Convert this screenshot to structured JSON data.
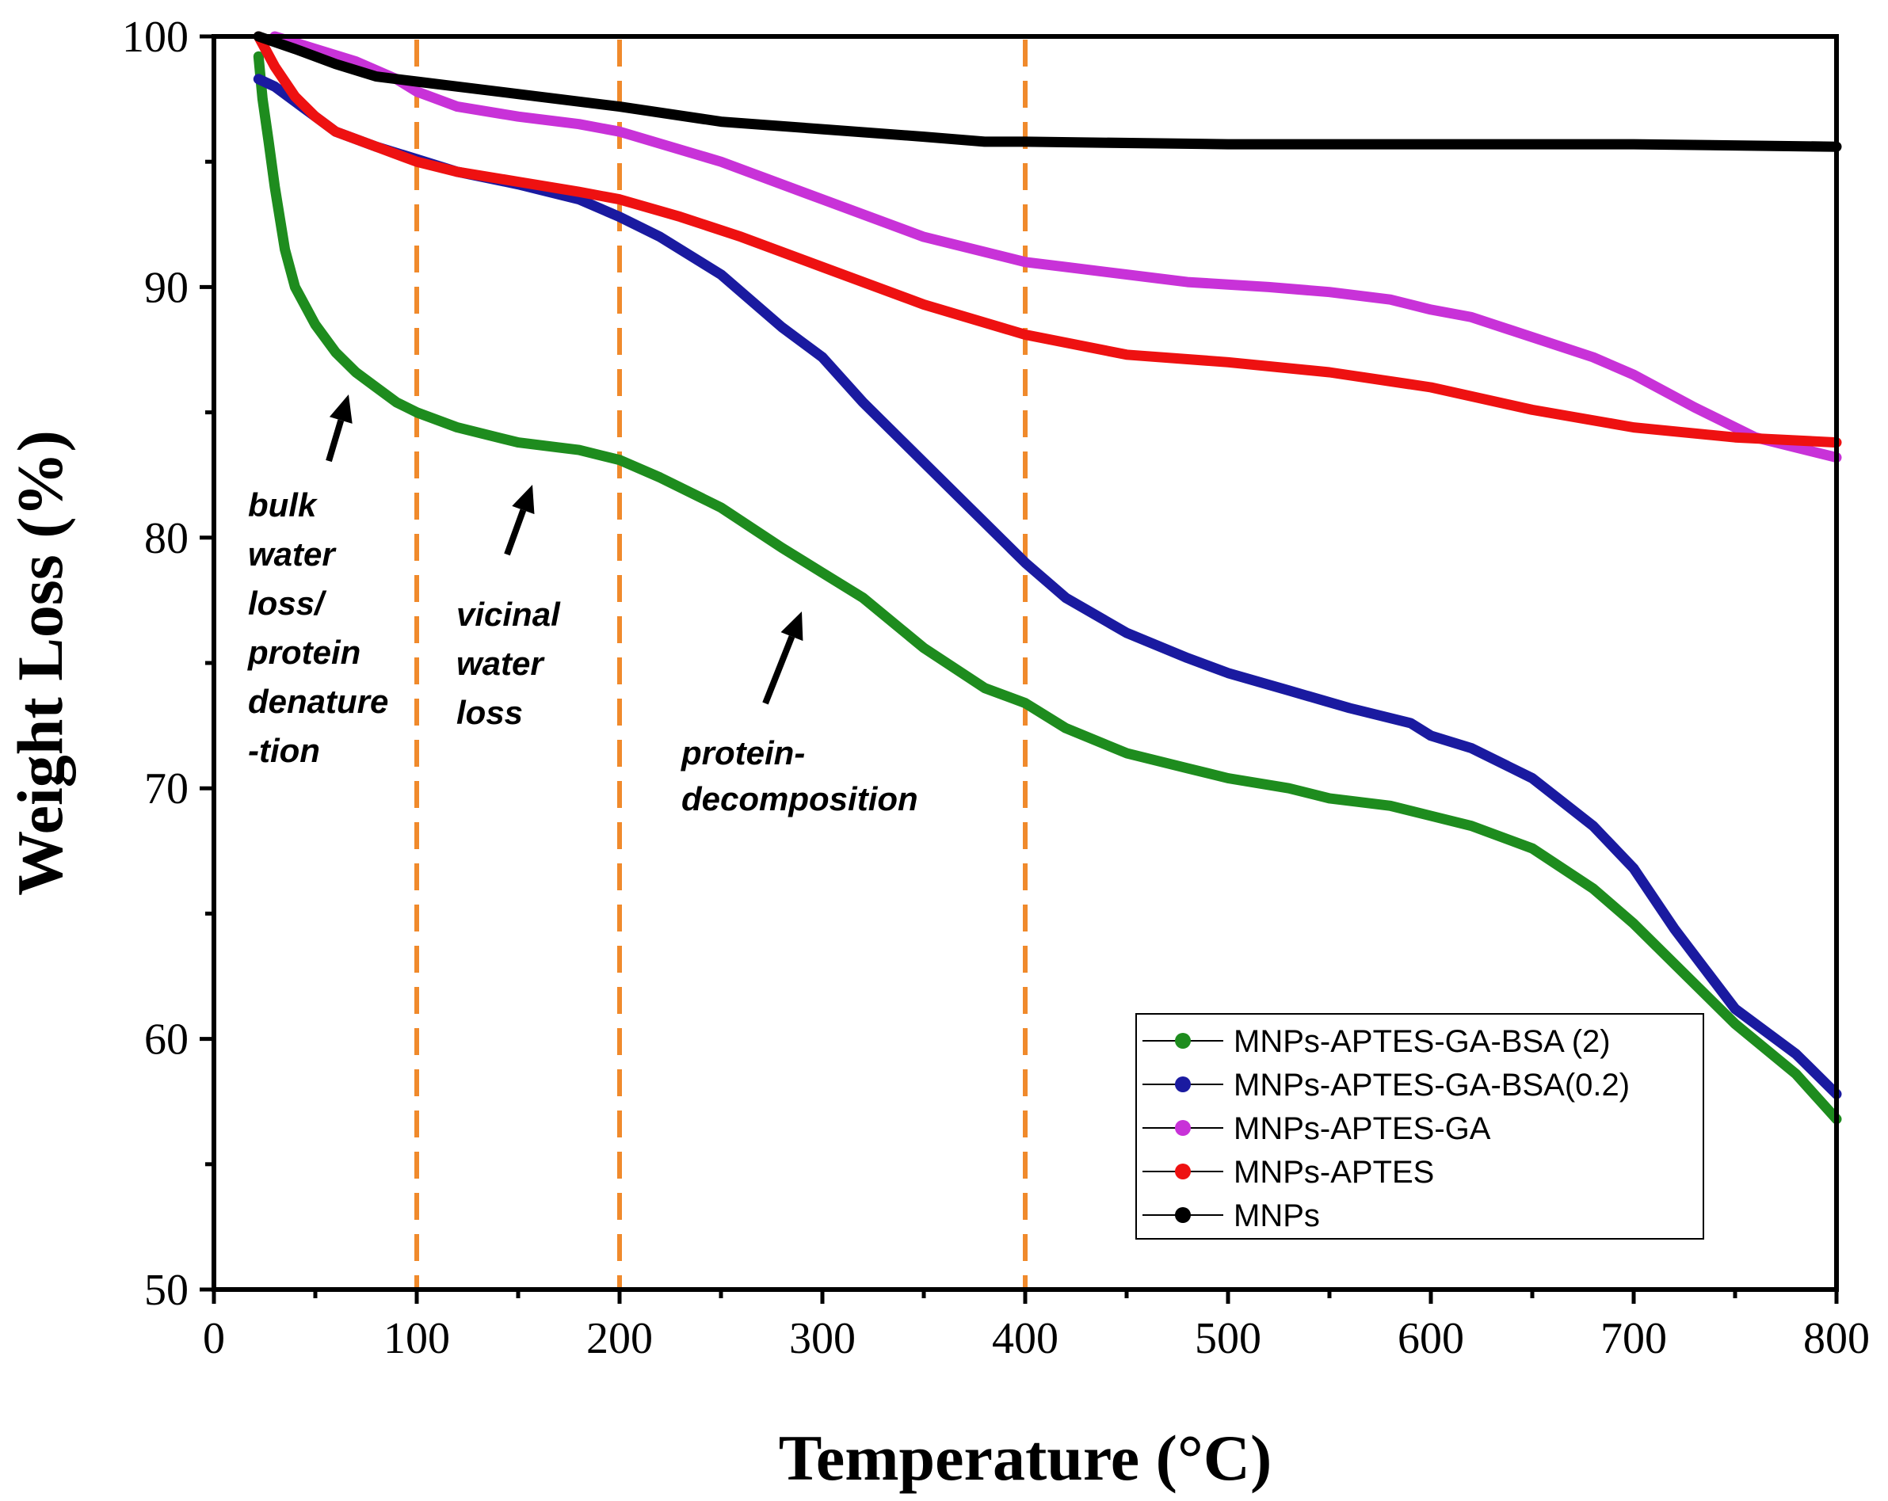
{
  "chart_data": {
    "type": "line",
    "title": "",
    "xlabel": "Temperature (°C)",
    "ylabel": "Weight Loss (%)",
    "xlim": [
      0,
      800
    ],
    "ylim": [
      50,
      100
    ],
    "x_ticks": [
      0,
      100,
      200,
      300,
      400,
      500,
      600,
      700,
      800
    ],
    "y_ticks": [
      50,
      60,
      70,
      80,
      90,
      100
    ],
    "x_tick_labels": [
      "0",
      "100",
      "200",
      "300",
      "400",
      "500",
      "600",
      "700",
      "800"
    ],
    "y_tick_labels": [
      "50",
      "60",
      "70",
      "80",
      "90",
      "100"
    ],
    "grid": false,
    "legend_position": "bottom-right",
    "reference_lines": {
      "x_values": [
        100,
        200,
        400
      ],
      "color": "#F08A2C",
      "style": "dashed"
    },
    "series": [
      {
        "name": "MNPs-APTES-GA-BSA (2)",
        "color": "#1E8C1E",
        "points": [
          [
            22,
            99.2
          ],
          [
            24,
            97.5
          ],
          [
            27,
            95.8
          ],
          [
            30,
            94
          ],
          [
            35,
            91.5
          ],
          [
            40,
            90
          ],
          [
            50,
            88.5
          ],
          [
            60,
            87.4
          ],
          [
            70,
            86.6
          ],
          [
            80,
            86
          ],
          [
            90,
            85.4
          ],
          [
            100,
            85
          ],
          [
            120,
            84.4
          ],
          [
            150,
            83.8
          ],
          [
            170,
            83.6
          ],
          [
            180,
            83.5
          ],
          [
            200,
            83.1
          ],
          [
            220,
            82.4
          ],
          [
            250,
            81.2
          ],
          [
            280,
            79.6
          ],
          [
            300,
            78.6
          ],
          [
            320,
            77.6
          ],
          [
            350,
            75.6
          ],
          [
            380,
            74
          ],
          [
            400,
            73.4
          ],
          [
            420,
            72.4
          ],
          [
            450,
            71.4
          ],
          [
            480,
            70.8
          ],
          [
            500,
            70.4
          ],
          [
            530,
            70
          ],
          [
            550,
            69.6
          ],
          [
            580,
            69.3
          ],
          [
            600,
            68.9
          ],
          [
            620,
            68.5
          ],
          [
            650,
            67.6
          ],
          [
            680,
            66
          ],
          [
            700,
            64.6
          ],
          [
            720,
            63
          ],
          [
            750,
            60.6
          ],
          [
            780,
            58.6
          ],
          [
            800,
            56.8
          ]
        ]
      },
      {
        "name": "MNPs-APTES-GA-BSA(0.2)",
        "color": "#1A1AA0",
        "points": [
          [
            22,
            98.3
          ],
          [
            30,
            98
          ],
          [
            40,
            97.4
          ],
          [
            50,
            96.8
          ],
          [
            60,
            96.2
          ],
          [
            80,
            95.6
          ],
          [
            100,
            95.1
          ],
          [
            120,
            94.6
          ],
          [
            150,
            94.1
          ],
          [
            180,
            93.5
          ],
          [
            200,
            92.8
          ],
          [
            220,
            92
          ],
          [
            250,
            90.5
          ],
          [
            280,
            88.4
          ],
          [
            300,
            87.2
          ],
          [
            320,
            85.4
          ],
          [
            350,
            83
          ],
          [
            380,
            80.6
          ],
          [
            400,
            79
          ],
          [
            420,
            77.6
          ],
          [
            450,
            76.2
          ],
          [
            480,
            75.2
          ],
          [
            500,
            74.6
          ],
          [
            530,
            73.9
          ],
          [
            560,
            73.2
          ],
          [
            590,
            72.6
          ],
          [
            600,
            72.1
          ],
          [
            620,
            71.6
          ],
          [
            650,
            70.4
          ],
          [
            680,
            68.5
          ],
          [
            700,
            66.8
          ],
          [
            720,
            64.4
          ],
          [
            750,
            61.2
          ],
          [
            780,
            59.4
          ],
          [
            800,
            57.8
          ]
        ]
      },
      {
        "name": "MNPs-APTES-GA",
        "color": "#C832D8",
        "points": [
          [
            30,
            100
          ],
          [
            50,
            99.5
          ],
          [
            70,
            99
          ],
          [
            90,
            98.3
          ],
          [
            100,
            97.8
          ],
          [
            120,
            97.2
          ],
          [
            150,
            96.8
          ],
          [
            180,
            96.5
          ],
          [
            200,
            96.2
          ],
          [
            250,
            95
          ],
          [
            300,
            93.5
          ],
          [
            350,
            92
          ],
          [
            400,
            91
          ],
          [
            420,
            90.8
          ],
          [
            450,
            90.5
          ],
          [
            480,
            90.2
          ],
          [
            500,
            90.1
          ],
          [
            520,
            90
          ],
          [
            550,
            89.8
          ],
          [
            580,
            89.5
          ],
          [
            600,
            89.1
          ],
          [
            620,
            88.8
          ],
          [
            650,
            88
          ],
          [
            680,
            87.2
          ],
          [
            700,
            86.5
          ],
          [
            730,
            85.2
          ],
          [
            760,
            84
          ],
          [
            780,
            83.6
          ],
          [
            800,
            83.2
          ]
        ]
      },
      {
        "name": "MNPs-APTES",
        "color": "#EE1111",
        "points": [
          [
            22,
            100
          ],
          [
            30,
            98.8
          ],
          [
            40,
            97.6
          ],
          [
            50,
            96.8
          ],
          [
            60,
            96.2
          ],
          [
            80,
            95.6
          ],
          [
            100,
            95
          ],
          [
            120,
            94.6
          ],
          [
            150,
            94.2
          ],
          [
            180,
            93.8
          ],
          [
            200,
            93.5
          ],
          [
            230,
            92.8
          ],
          [
            260,
            92
          ],
          [
            300,
            90.8
          ],
          [
            350,
            89.3
          ],
          [
            400,
            88.1
          ],
          [
            450,
            87.3
          ],
          [
            500,
            87
          ],
          [
            550,
            86.6
          ],
          [
            600,
            86
          ],
          [
            650,
            85.1
          ],
          [
            700,
            84.4
          ],
          [
            750,
            84
          ],
          [
            800,
            83.8
          ]
        ]
      },
      {
        "name": "MNPs",
        "color": "#000000",
        "points": [
          [
            22,
            100
          ],
          [
            40,
            99.5
          ],
          [
            60,
            98.9
          ],
          [
            80,
            98.4
          ],
          [
            100,
            98.2
          ],
          [
            130,
            97.9
          ],
          [
            160,
            97.6
          ],
          [
            200,
            97.2
          ],
          [
            250,
            96.6
          ],
          [
            300,
            96.3
          ],
          [
            350,
            96
          ],
          [
            380,
            95.8
          ],
          [
            400,
            95.8
          ],
          [
            500,
            95.7
          ],
          [
            600,
            95.7
          ],
          [
            700,
            95.7
          ],
          [
            800,
            95.6
          ]
        ]
      }
    ],
    "annotations": [
      {
        "lines": [
          "bulk",
          "water",
          "loss/",
          "protein",
          "denature",
          "-tion"
        ]
      },
      {
        "lines": [
          "vicinal",
          "water",
          "loss"
        ]
      },
      {
        "lines": [
          "protein-",
          "decomposition"
        ]
      }
    ]
  }
}
